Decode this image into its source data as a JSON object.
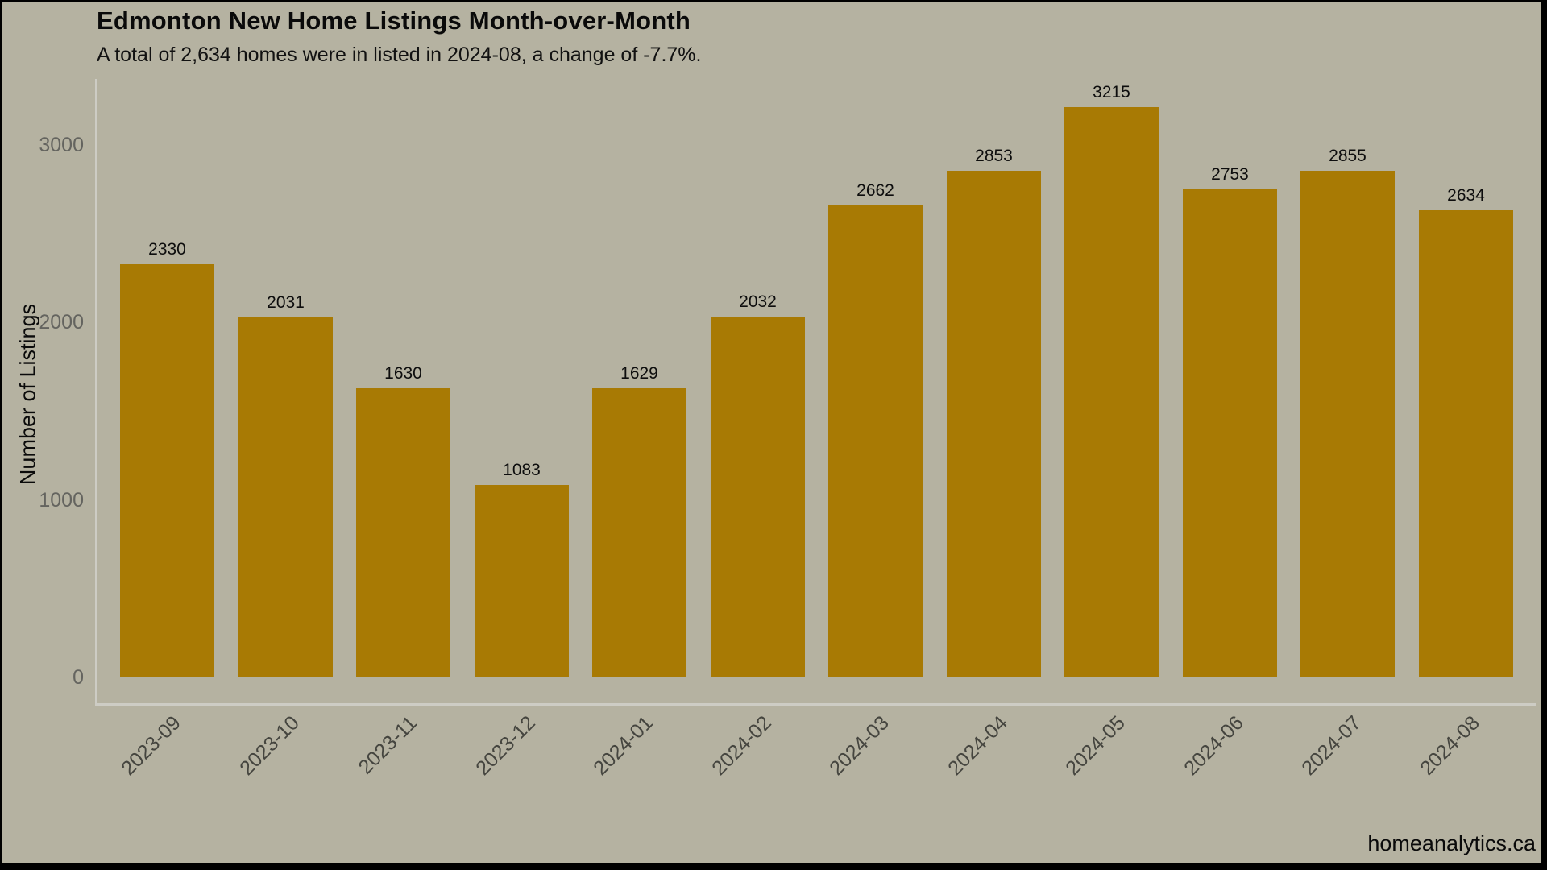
{
  "title": "Edmonton New Home Listings Month-over-Month",
  "subtitle": "A total of 2,634 homes were in listed in 2024-08, a change of -7.7%.",
  "watermark": "homeanalytics.ca",
  "colors": {
    "background": "#b5b2a1",
    "bar": "#a87a04",
    "spine": "#cdccc4",
    "frame": "#000000",
    "y_tick_text": "#64645f",
    "x_tick_text": "#45453f",
    "text": "#0a0a0a"
  },
  "chart_data": {
    "type": "bar",
    "title": "Edmonton New Home Listings Month-over-Month",
    "subtitle": "A total of 2,634 homes were in listed in 2024-08, a change of -7.7%.",
    "categories": [
      "2023-09",
      "2023-10",
      "2023-11",
      "2023-12",
      "2024-01",
      "2024-02",
      "2024-03",
      "2024-04",
      "2024-05",
      "2024-06",
      "2024-07",
      "2024-08"
    ],
    "values": [
      2330,
      2031,
      1630,
      1083,
      1629,
      2032,
      2662,
      2853,
      3215,
      2753,
      2855,
      2634
    ],
    "xlabel": "",
    "ylabel": "Number of Listings",
    "yticks": [
      0,
      1000,
      2000,
      3000
    ],
    "ylim": [
      0,
      3400
    ],
    "bar_labels": true,
    "grid": false,
    "legend": "none"
  }
}
